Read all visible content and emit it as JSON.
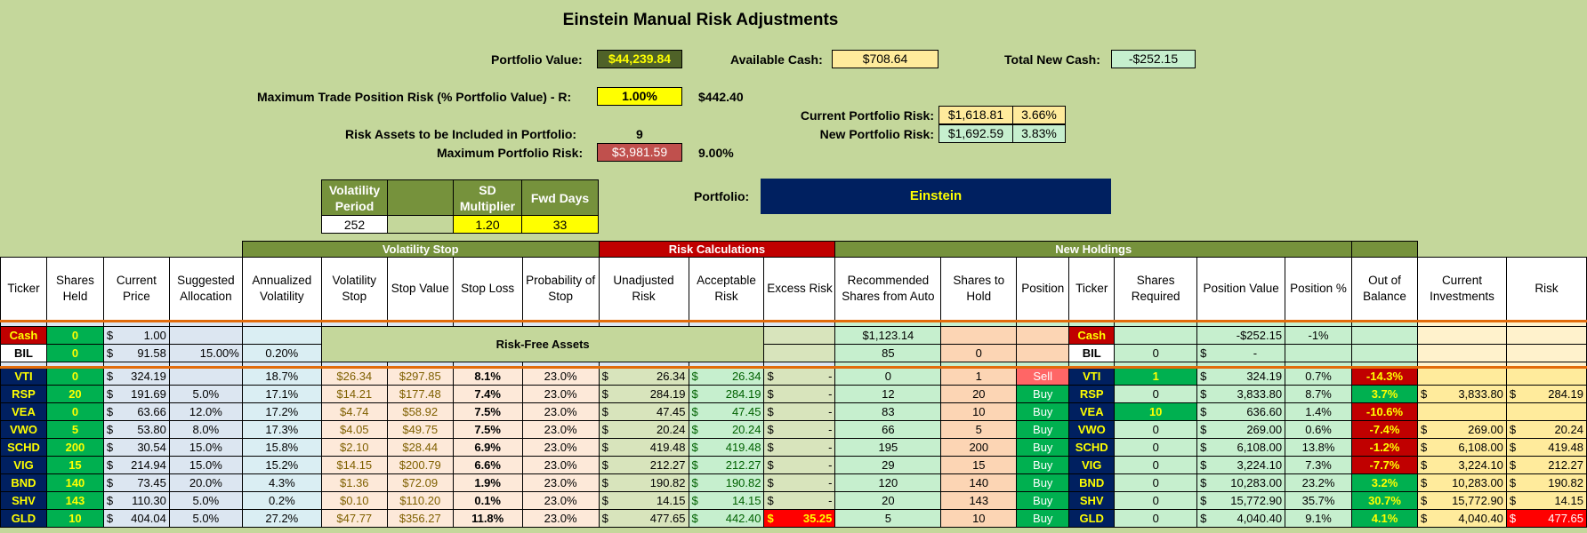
{
  "title": "Einstein Manual Risk Adjustments",
  "summary": {
    "portfolio_value_label": "Portfolio Value:",
    "portfolio_value": "$44,239.84",
    "available_cash_label": "Available Cash:",
    "available_cash": "$708.64",
    "total_new_cash_label": "Total New Cash:",
    "total_new_cash": "-$252.15",
    "max_trade_risk_label": "Maximum Trade Position Risk (% Portfolio Value) - R:",
    "max_trade_risk_pct": "1.00%",
    "max_trade_risk_value": "$442.40",
    "current_risk_label": "Current Portfolio Risk:",
    "current_risk_value": "$1,618.81",
    "current_risk_pct": "3.66%",
    "new_risk_label": "New Portfolio Risk:",
    "new_risk_value": "$1,692.59",
    "new_risk_pct": "3.83%",
    "risk_assets_label": "Risk Assets to be Included in Portfolio:",
    "risk_assets_count": "9",
    "max_portfolio_risk_label": "Maximum Portfolio Risk:",
    "max_portfolio_risk_value": "$3,981.59",
    "max_portfolio_risk_pct": "9.00%"
  },
  "params": {
    "h_vol_period": "Volatility Period",
    "h_sd": "SD Multiplier",
    "h_fwd": "Fwd Days",
    "vol_period": "252",
    "sd_multiplier": "1.20",
    "fwd_days": "33"
  },
  "portfolio": {
    "label": "Portfolio:",
    "name": "Einstein"
  },
  "sections": {
    "volatility_stop": "Volatility Stop",
    "risk_calculations": "Risk Calculations",
    "new_holdings": "New Holdings",
    "risk_free_assets": "Risk-Free Assets"
  },
  "headers": [
    "Ticker",
    "Shares Held",
    "Current Price",
    "Suggested Allocation",
    "Annualized Volatility",
    "Volatility Stop",
    "Stop Value",
    "Stop Loss",
    "Probability of Stop",
    "Unadjusted Risk",
    "Acceptable Risk",
    "Excess Risk",
    "Recommended Shares from Auto",
    "Shares to Hold",
    "Position",
    "Ticker",
    "Shares Required",
    "Position Value",
    "Position %",
    "Out of Balance",
    "Current Investments",
    "Risk"
  ],
  "cash_rows": [
    {
      "ticker": "Cash",
      "shares": "0",
      "price": "1.00",
      "alloc": "",
      "vol": "",
      "rec": "$1,123.14",
      "hold": "",
      "ticker2": "Cash",
      "req": "",
      "pv": "-$252.15",
      "pp": "-1%"
    },
    {
      "ticker": "BIL",
      "shares": "0",
      "price": "91.58",
      "alloc": "15.00%",
      "vol": "0.20%",
      "rec": "85",
      "hold": "0",
      "ticker2": "BIL",
      "req": "0",
      "pv": "-",
      "pp": ""
    }
  ],
  "rows": [
    {
      "ticker": "VTI",
      "shares": "0",
      "price": "324.19",
      "alloc": "",
      "vol": "18.7%",
      "vstop": "$26.34",
      "sval": "$297.85",
      "sloss": "8.1%",
      "prob": "23.0%",
      "urisk": "26.34",
      "arisk": "26.34",
      "erisk": "-",
      "erisk_red": false,
      "rec": "0",
      "hold": "1",
      "pos": "Sell",
      "req": "1",
      "req_green": true,
      "pval": "324.19",
      "ppct": "0.7%",
      "oob": "-14.3%",
      "oob_red": true,
      "ci": "",
      "risk": ""
    },
    {
      "ticker": "RSP",
      "shares": "20",
      "price": "191.69",
      "alloc": "5.0%",
      "vol": "17.1%",
      "vstop": "$14.21",
      "sval": "$177.48",
      "sloss": "7.4%",
      "prob": "23.0%",
      "urisk": "284.19",
      "arisk": "284.19",
      "erisk": "-",
      "erisk_red": false,
      "rec": "12",
      "hold": "20",
      "pos": "Buy",
      "req": "0",
      "req_green": false,
      "pval": "3,833.80",
      "ppct": "8.7%",
      "oob": "3.7%",
      "oob_red": false,
      "ci": "3,833.80",
      "risk": "284.19"
    },
    {
      "ticker": "VEA",
      "shares": "0",
      "price": "63.66",
      "alloc": "12.0%",
      "vol": "17.2%",
      "vstop": "$4.74",
      "sval": "$58.92",
      "sloss": "7.5%",
      "prob": "23.0%",
      "urisk": "47.45",
      "arisk": "47.45",
      "erisk": "-",
      "erisk_red": false,
      "rec": "83",
      "hold": "10",
      "pos": "Buy",
      "req": "10",
      "req_green": true,
      "pval": "636.60",
      "ppct": "1.4%",
      "oob": "-10.6%",
      "oob_red": true,
      "ci": "",
      "risk": ""
    },
    {
      "ticker": "VWO",
      "shares": "5",
      "price": "53.80",
      "alloc": "8.0%",
      "vol": "17.3%",
      "vstop": "$4.05",
      "sval": "$49.75",
      "sloss": "7.5%",
      "prob": "23.0%",
      "urisk": "20.24",
      "arisk": "20.24",
      "erisk": "-",
      "erisk_red": false,
      "rec": "66",
      "hold": "5",
      "pos": "Buy",
      "req": "0",
      "req_green": false,
      "pval": "269.00",
      "ppct": "0.6%",
      "oob": "-7.4%",
      "oob_red": true,
      "ci": "269.00",
      "risk": "20.24"
    },
    {
      "ticker": "SCHD",
      "shares": "200",
      "price": "30.54",
      "alloc": "15.0%",
      "vol": "15.8%",
      "vstop": "$2.10",
      "sval": "$28.44",
      "sloss": "6.9%",
      "prob": "23.0%",
      "urisk": "419.48",
      "arisk": "419.48",
      "erisk": "-",
      "erisk_red": false,
      "rec": "195",
      "hold": "200",
      "pos": "Buy",
      "req": "0",
      "req_green": false,
      "pval": "6,108.00",
      "ppct": "13.8%",
      "oob": "-1.2%",
      "oob_red": true,
      "ci": "6,108.00",
      "risk": "419.48"
    },
    {
      "ticker": "VIG",
      "shares": "15",
      "price": "214.94",
      "alloc": "15.0%",
      "vol": "15.2%",
      "vstop": "$14.15",
      "sval": "$200.79",
      "sloss": "6.6%",
      "prob": "23.0%",
      "urisk": "212.27",
      "arisk": "212.27",
      "erisk": "-",
      "erisk_red": false,
      "rec": "29",
      "hold": "15",
      "pos": "Buy",
      "req": "0",
      "req_green": false,
      "pval": "3,224.10",
      "ppct": "7.3%",
      "oob": "-7.7%",
      "oob_red": true,
      "ci": "3,224.10",
      "risk": "212.27"
    },
    {
      "ticker": "BND",
      "shares": "140",
      "price": "73.45",
      "alloc": "20.0%",
      "vol": "4.3%",
      "vstop": "$1.36",
      "sval": "$72.09",
      "sloss": "1.9%",
      "prob": "23.0%",
      "urisk": "190.82",
      "arisk": "190.82",
      "erisk": "-",
      "erisk_red": false,
      "rec": "120",
      "hold": "140",
      "pos": "Buy",
      "req": "0",
      "req_green": false,
      "pval": "10,283.00",
      "ppct": "23.2%",
      "oob": "3.2%",
      "oob_red": false,
      "ci": "10,283.00",
      "risk": "190.82"
    },
    {
      "ticker": "SHV",
      "shares": "143",
      "price": "110.30",
      "alloc": "5.0%",
      "vol": "0.2%",
      "vstop": "$0.10",
      "sval": "$110.20",
      "sloss": "0.1%",
      "prob": "23.0%",
      "urisk": "14.15",
      "arisk": "14.15",
      "erisk": "-",
      "erisk_red": false,
      "rec": "20",
      "hold": "143",
      "pos": "Buy",
      "req": "0",
      "req_green": false,
      "pval": "15,772.90",
      "ppct": "35.7%",
      "oob": "30.7%",
      "oob_red": false,
      "ci": "15,772.90",
      "risk": "14.15"
    },
    {
      "ticker": "GLD",
      "shares": "10",
      "price": "404.04",
      "alloc": "5.0%",
      "vol": "27.2%",
      "vstop": "$47.77",
      "sval": "$356.27",
      "sloss": "11.8%",
      "prob": "23.0%",
      "urisk": "477.65",
      "arisk": "442.40",
      "erisk": "35.25",
      "erisk_red": true,
      "rec": "5",
      "hold": "10",
      "pos": "Buy",
      "req": "0",
      "req_green": false,
      "pval": "4,040.40",
      "ppct": "9.1%",
      "oob": "4.1%",
      "oob_red": false,
      "ci": "4,040.40",
      "risk": "477.65"
    }
  ],
  "colors": {
    "background": "#c4d79b",
    "ticker_bg": "#002060",
    "ticker_fg": "#ffff00",
    "section_green": "#76923c",
    "section_red": "#c00000",
    "buy": "#00b050",
    "sell": "#ff6666"
  }
}
